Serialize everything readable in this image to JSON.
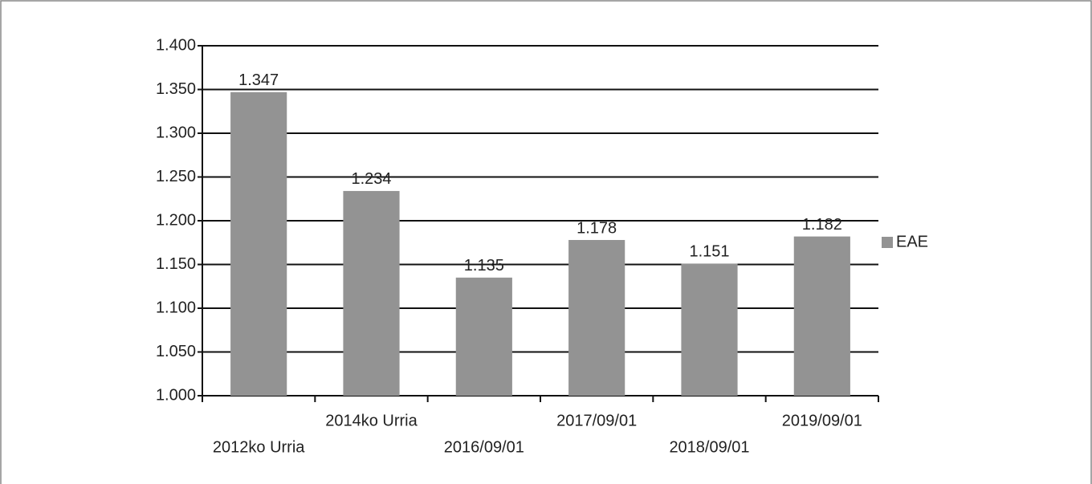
{
  "chart_data": {
    "type": "bar",
    "categories": [
      "2012ko Urria",
      "2014ko Urria",
      "2016/09/01",
      "2017/09/01",
      "2018/09/01",
      "2019/09/01"
    ],
    "series": [
      {
        "name": "EAE",
        "color": "#939393",
        "values": [
          1347,
          1234,
          1135,
          1178,
          1151,
          1182
        ],
        "value_labels": [
          "1.347",
          "1.234",
          "1.135",
          "1.178",
          "1.151",
          "1.182"
        ]
      }
    ],
    "ylim": [
      1000,
      1400
    ],
    "yticks": [
      {
        "value": 1000,
        "label": "1.000"
      },
      {
        "value": 1050,
        "label": "1.050"
      },
      {
        "value": 1100,
        "label": "1.100"
      },
      {
        "value": 1150,
        "label": "1.150"
      },
      {
        "value": 1200,
        "label": "1.200"
      },
      {
        "value": 1250,
        "label": "1.250"
      },
      {
        "value": 1300,
        "label": "1.300"
      },
      {
        "value": 1350,
        "label": "1.350"
      },
      {
        "value": 1400,
        "label": "1.400"
      }
    ],
    "grid": true,
    "legend": "right"
  }
}
